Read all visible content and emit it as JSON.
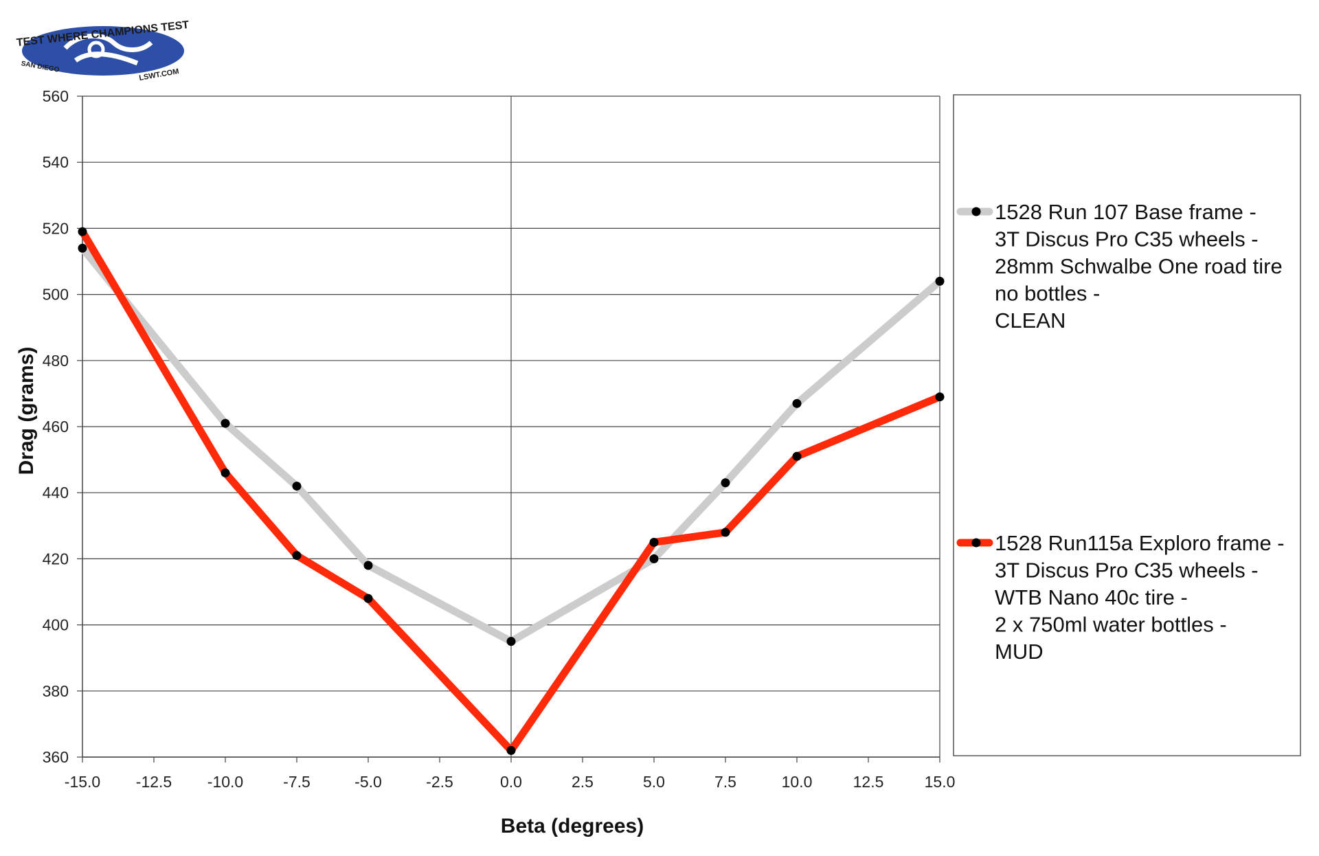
{
  "logo": {
    "top_text": "TEST WHERE CHAMPIONS TEST",
    "left_text": "SAN DIEGO",
    "right_text": "LSWT.COM",
    "color": "#2d4fa8"
  },
  "chart_data": {
    "type": "line",
    "title": "",
    "xlabel": "Beta (degrees)",
    "ylabel": "Drag (grams)",
    "xlim": [
      -15,
      15
    ],
    "ylim": [
      360,
      560
    ],
    "x_ticks": [
      "-15.0",
      "-12.5",
      "-10.0",
      "-7.5",
      "-5.0",
      "-2.5",
      "0.0",
      "2.5",
      "5.0",
      "7.5",
      "10.0",
      "12.5",
      "15.0"
    ],
    "y_ticks": [
      "560",
      "540",
      "520",
      "500",
      "480",
      "460",
      "440",
      "420",
      "400",
      "380",
      "360"
    ],
    "grid": "horizontal",
    "legend_position": "right",
    "series": [
      {
        "name_lines": [
          "1528 Run 107 Base frame -",
          "3T Discus Pro C35 wheels -",
          "28mm Schwalbe One road tire",
          "no bottles -",
          "CLEAN"
        ],
        "color": "#cccccc",
        "x": [
          -15,
          -10,
          -7.5,
          -5,
          0,
          5,
          7.5,
          10,
          15
        ],
        "y": [
          514,
          461,
          442,
          418,
          395,
          420,
          443,
          467,
          504
        ]
      },
      {
        "name_lines": [
          "1528 Run115a Exploro frame -",
          "3T Discus Pro C35 wheels -",
          "WTB Nano 40c tire -",
          "2 x 750ml water bottles -",
          "MUD"
        ],
        "color": "#ff2a0a",
        "x": [
          -15,
          -10,
          -7.5,
          -5,
          0,
          5,
          7.5,
          10,
          15
        ],
        "y": [
          519,
          446,
          421,
          408,
          362,
          425,
          428,
          451,
          469
        ]
      }
    ]
  }
}
